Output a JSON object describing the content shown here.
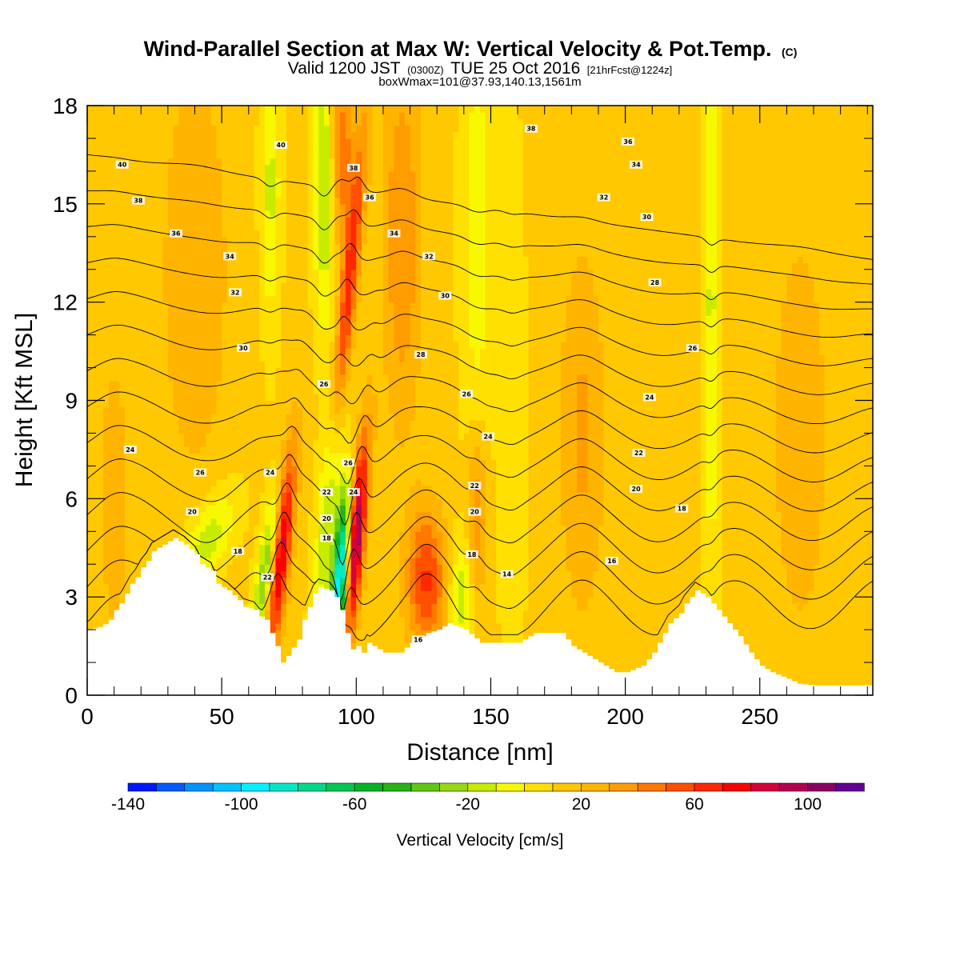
{
  "title": {
    "main": "Wind-Parallel Section at Max W: Vertical Velocity & Pot.Temp.",
    "main_suffix": "(C)",
    "valid_a": "Valid 1200 JST",
    "valid_b": "(0300Z)",
    "valid_c": "TUE 25 Oct 2016",
    "valid_d": "[21hrFcst@1224z]",
    "boxw": "boxWmax=101@37.93,140.13,1561m"
  },
  "chart_data": {
    "type": "heatmap",
    "xlabel": "Distance [nm]",
    "ylabel": "Height [Kft MSL]",
    "xlim": [
      0,
      292
    ],
    "ylim": [
      0,
      18
    ],
    "x_ticks": [
      0,
      50,
      100,
      150,
      200,
      250
    ],
    "x_tick_labels": [
      "0",
      "50",
      "100",
      "150",
      "200",
      "250"
    ],
    "y_ticks": [
      0,
      3,
      6,
      9,
      12,
      15,
      18
    ],
    "y_tick_labels": [
      "0",
      "3",
      "6",
      "9",
      "12",
      "15",
      "18"
    ],
    "background_velocity_cm_s": 12,
    "velocity_features": [
      {
        "x": 72,
        "y": 4.5,
        "sx": 2.5,
        "sy": 2.2,
        "tilt": 1.2,
        "w": 80
      },
      {
        "x": 67,
        "y": 4.0,
        "sx": 2.5,
        "sy": 1.8,
        "tilt": 1.8,
        "w": -50
      },
      {
        "x": 45,
        "y": 4.8,
        "sx": 6.0,
        "sy": 1.0,
        "tilt": 4.0,
        "w": -30
      },
      {
        "x": 94,
        "y": 3.5,
        "sx": 2.0,
        "sy": 1.8,
        "tilt": 0.8,
        "w": -120
      },
      {
        "x": 90,
        "y": 6.5,
        "sx": 2.5,
        "sy": 3.0,
        "tilt": 1.0,
        "w": -50
      },
      {
        "x": 100,
        "y": 4.8,
        "sx": 2.2,
        "sy": 2.2,
        "tilt": 1.0,
        "w": 90
      },
      {
        "x": 96,
        "y": 11.5,
        "sx": 2.2,
        "sy": 4.0,
        "tilt": 1.2,
        "w": 60
      },
      {
        "x": 95,
        "y": 16.5,
        "sx": 3.0,
        "sy": 2.0,
        "tilt": 0.0,
        "w": 35
      },
      {
        "x": 88,
        "y": 15.5,
        "sx": 2.5,
        "sy": 3.0,
        "tilt": 0.0,
        "w": -35
      },
      {
        "x": 68,
        "y": 15.5,
        "sx": 2.5,
        "sy": 3.0,
        "tilt": 0.0,
        "w": -25
      },
      {
        "x": 126,
        "y": 3.5,
        "sx": 5.0,
        "sy": 1.5,
        "tilt": 0.0,
        "w": 50
      },
      {
        "x": 139,
        "y": 3.0,
        "sx": 3.0,
        "sy": 1.2,
        "tilt": 0.0,
        "w": -30
      },
      {
        "x": 145,
        "y": 5.5,
        "sx": 2.5,
        "sy": 1.8,
        "tilt": 0.0,
        "w": 30
      },
      {
        "x": 117,
        "y": 14.0,
        "sx": 5.0,
        "sy": 4.0,
        "tilt": 0.0,
        "w": 28
      },
      {
        "x": 145,
        "y": 14.0,
        "sx": 4.0,
        "sy": 5.0,
        "tilt": 0.0,
        "w": -18
      },
      {
        "x": 158,
        "y": 8.0,
        "sx": 3.0,
        "sy": 6.0,
        "tilt": 0.0,
        "w": -12
      },
      {
        "x": 184,
        "y": 8.0,
        "sx": 6.0,
        "sy": 4.0,
        "tilt": 0.0,
        "w": 20
      },
      {
        "x": 232,
        "y": 12.0,
        "sx": 2.0,
        "sy": 6.0,
        "tilt": 0.0,
        "w": -25
      },
      {
        "x": 40,
        "y": 13.0,
        "sx": 10.0,
        "sy": 5.0,
        "tilt": 0.0,
        "w": 15
      },
      {
        "x": 10,
        "y": 6.0,
        "sx": 5.0,
        "sy": 4.0,
        "tilt": 0.0,
        "w": 12
      },
      {
        "x": 265,
        "y": 8.0,
        "sx": 10.0,
        "sy": 6.0,
        "tilt": 0.0,
        "w": 12
      }
    ],
    "terrain": {
      "x": [
        0,
        5,
        8,
        10,
        12,
        14,
        16,
        18,
        20,
        22,
        24,
        32,
        36,
        40,
        42,
        46,
        48,
        52,
        56,
        58,
        62,
        64,
        66,
        68,
        70,
        72,
        74,
        78,
        80,
        84,
        86,
        90,
        92,
        94,
        96,
        98,
        100,
        102,
        104,
        110,
        116,
        120,
        126,
        130,
        134,
        140,
        146,
        150,
        160,
        166,
        176,
        180,
        184,
        190,
        196,
        200,
        206,
        210,
        214,
        216,
        220,
        222,
        224,
        226,
        230,
        234,
        238,
        242,
        246,
        250,
        254,
        260,
        264,
        270,
        280,
        292
      ],
      "height": [
        2,
        2.1,
        2.3,
        2.6,
        2.8,
        3.1,
        3.4,
        3.6,
        3.9,
        4.1,
        4.4,
        4.8,
        4.6,
        4.3,
        4.0,
        3.8,
        3.4,
        3.2,
        2.9,
        2.7,
        2.6,
        2.4,
        2.3,
        1.9,
        1.5,
        1.0,
        1.2,
        1.7,
        2.3,
        3.1,
        3.3,
        3.2,
        3.0,
        2.6,
        1.9,
        1.4,
        1.5,
        1.3,
        1.6,
        1.3,
        1.3,
        1.6,
        1.9,
        2.0,
        2.2,
        2.0,
        1.6,
        1.6,
        1.6,
        1.9,
        1.9,
        1.5,
        1.3,
        1.0,
        0.7,
        0.7,
        0.9,
        1.3,
        1.9,
        2.2,
        2.5,
        2.8,
        3.0,
        3.2,
        3.0,
        2.6,
        2.2,
        1.8,
        1.3,
        0.9,
        0.7,
        0.5,
        0.35,
        0.3,
        0.3,
        0.3
      ]
    },
    "theta_contours_C": [
      14,
      16,
      18,
      20,
      22,
      24,
      26,
      28,
      30,
      32,
      34,
      36,
      38,
      40
    ],
    "contour_labels": [
      {
        "text": "40",
        "x": 13,
        "y": 16.2
      },
      {
        "text": "38",
        "x": 19,
        "y": 15.1
      },
      {
        "text": "36",
        "x": 33,
        "y": 14.1
      },
      {
        "text": "34",
        "x": 53,
        "y": 13.4
      },
      {
        "text": "32",
        "x": 55,
        "y": 12.3
      },
      {
        "text": "30",
        "x": 58,
        "y": 10.6
      },
      {
        "text": "24",
        "x": 16,
        "y": 7.5
      },
      {
        "text": "26",
        "x": 42,
        "y": 6.8
      },
      {
        "text": "20",
        "x": 39,
        "y": 5.6
      },
      {
        "text": "18",
        "x": 56,
        "y": 4.4
      },
      {
        "text": "40",
        "x": 72,
        "y": 16.8
      },
      {
        "text": "38",
        "x": 99,
        "y": 16.1
      },
      {
        "text": "36",
        "x": 105,
        "y": 15.2
      },
      {
        "text": "34",
        "x": 114,
        "y": 14.1
      },
      {
        "text": "32",
        "x": 127,
        "y": 13.4
      },
      {
        "text": "30",
        "x": 133,
        "y": 12.2
      },
      {
        "text": "28",
        "x": 124,
        "y": 10.4
      },
      {
        "text": "26",
        "x": 88,
        "y": 9.5
      },
      {
        "text": "26",
        "x": 97,
        "y": 7.1
      },
      {
        "text": "24",
        "x": 68,
        "y": 6.8
      },
      {
        "text": "22",
        "x": 89,
        "y": 6.2
      },
      {
        "text": "24",
        "x": 99,
        "y": 6.2
      },
      {
        "text": "20",
        "x": 89,
        "y": 5.4
      },
      {
        "text": "18",
        "x": 89,
        "y": 4.8
      },
      {
        "text": "22",
        "x": 67,
        "y": 3.6
      },
      {
        "text": "16",
        "x": 123,
        "y": 1.7
      },
      {
        "text": "26",
        "x": 141,
        "y": 9.2
      },
      {
        "text": "24",
        "x": 149,
        "y": 7.9
      },
      {
        "text": "22",
        "x": 144,
        "y": 6.4
      },
      {
        "text": "20",
        "x": 144,
        "y": 5.6
      },
      {
        "text": "18",
        "x": 143,
        "y": 4.3
      },
      {
        "text": "14",
        "x": 156,
        "y": 3.7
      },
      {
        "text": "38",
        "x": 165,
        "y": 17.3
      },
      {
        "text": "36",
        "x": 201,
        "y": 16.9
      },
      {
        "text": "34",
        "x": 204,
        "y": 16.2
      },
      {
        "text": "32",
        "x": 192,
        "y": 15.2
      },
      {
        "text": "30",
        "x": 208,
        "y": 14.6
      },
      {
        "text": "28",
        "x": 211,
        "y": 12.6
      },
      {
        "text": "26",
        "x": 225,
        "y": 10.6
      },
      {
        "text": "24",
        "x": 209,
        "y": 9.1
      },
      {
        "text": "22",
        "x": 205,
        "y": 7.4
      },
      {
        "text": "20",
        "x": 204,
        "y": 6.3
      },
      {
        "text": "18",
        "x": 221,
        "y": 5.7
      },
      {
        "text": "16",
        "x": 195,
        "y": 4.1
      }
    ],
    "colorbar": {
      "title": "Vertical Velocity [cm/s]",
      "tick_labels": [
        "-140",
        "-100",
        "-60",
        "-20",
        "20",
        "60",
        "100"
      ],
      "tick_values": [
        -140,
        -100,
        -60,
        -20,
        20,
        60,
        100
      ],
      "range": [
        -140,
        110
      ],
      "step": 10,
      "colors": [
        "#0018ff",
        "#005cff",
        "#0094ff",
        "#00c4ff",
        "#00f0ff",
        "#00e8c8",
        "#00d88c",
        "#00c850",
        "#00b428",
        "#28b414",
        "#60c814",
        "#96d814",
        "#c8ec00",
        "#f8f800",
        "#ffe000",
        "#ffc800",
        "#ffb400",
        "#ff9c00",
        "#ff7800",
        "#ff5000",
        "#ff2800",
        "#ff0000",
        "#d8003c",
        "#b40050",
        "#8c0064",
        "#640096"
      ]
    }
  }
}
